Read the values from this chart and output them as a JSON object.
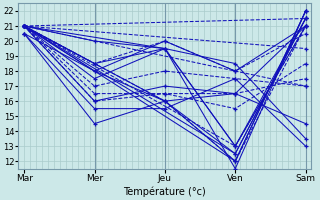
{
  "background_color": "#cce8e8",
  "grid_color": "#aacccc",
  "line_color": "#1111bb",
  "xlabel": "Température (°c)",
  "days": [
    "Mar",
    "Mer",
    "Jeu",
    "Ven",
    "Sam"
  ],
  "day_x": [
    0,
    96,
    192,
    288,
    384
  ],
  "xlim": [
    -8,
    392
  ],
  "ylim": [
    11.5,
    22.5
  ],
  "yticks": [
    12,
    13,
    14,
    15,
    16,
    17,
    18,
    19,
    20,
    21,
    22
  ],
  "series": [
    {
      "x": [
        0,
        96,
        192,
        288,
        384
      ],
      "y": [
        21.0,
        20.0,
        19.5,
        13.0,
        21.5
      ],
      "style": "-"
    },
    {
      "x": [
        0,
        96,
        192,
        288,
        384
      ],
      "y": [
        21.0,
        18.0,
        16.0,
        12.0,
        22.0
      ],
      "style": "-"
    },
    {
      "x": [
        0,
        96,
        192,
        288,
        384
      ],
      "y": [
        21.0,
        17.5,
        19.5,
        13.0,
        21.0
      ],
      "style": "-"
    },
    {
      "x": [
        0,
        96,
        192,
        288,
        384
      ],
      "y": [
        21.0,
        18.5,
        20.0,
        18.0,
        20.5
      ],
      "style": "--"
    },
    {
      "x": [
        0,
        96,
        192,
        288,
        384
      ],
      "y": [
        21.0,
        16.5,
        16.5,
        16.5,
        17.5
      ],
      "style": "--"
    },
    {
      "x": [
        0,
        96,
        192,
        288,
        384
      ],
      "y": [
        21.0,
        17.0,
        18.0,
        17.5,
        17.0
      ],
      "style": "--"
    },
    {
      "x": [
        0,
        96,
        192,
        288,
        384
      ],
      "y": [
        20.5,
        14.5,
        16.0,
        16.5,
        14.5
      ],
      "style": "-"
    },
    {
      "x": [
        0,
        96,
        192,
        288,
        384
      ],
      "y": [
        20.5,
        15.5,
        15.5,
        17.5,
        13.0
      ],
      "style": "-"
    },
    {
      "x": [
        0,
        96,
        192,
        288,
        384
      ],
      "y": [
        21.0,
        18.5,
        19.5,
        18.5,
        13.5
      ],
      "style": "-"
    },
    {
      "x": [
        0,
        96,
        192,
        288,
        384
      ],
      "y": [
        21.0,
        16.0,
        16.5,
        15.5,
        18.5
      ],
      "style": "--"
    },
    {
      "x": [
        0,
        96,
        192,
        288,
        384
      ],
      "y": [
        20.5,
        18.0,
        20.0,
        18.0,
        21.0
      ],
      "style": "-"
    },
    {
      "x": [
        0,
        96,
        192,
        288,
        384
      ],
      "y": [
        21.0,
        16.0,
        17.0,
        16.5,
        21.0
      ],
      "style": "-"
    },
    {
      "x": [
        0,
        192,
        288,
        384
      ],
      "y": [
        21.0,
        19.5,
        11.5,
        22.0
      ],
      "style": "-"
    },
    {
      "x": [
        0,
        192,
        288,
        384
      ],
      "y": [
        21.0,
        16.0,
        12.5,
        21.5
      ],
      "style": "-"
    },
    {
      "x": [
        0,
        192,
        288,
        384
      ],
      "y": [
        21.0,
        16.0,
        12.0,
        21.0
      ],
      "style": "--"
    },
    {
      "x": [
        0,
        288,
        384
      ],
      "y": [
        21.0,
        12.5,
        21.5
      ],
      "style": "-"
    },
    {
      "x": [
        0,
        288,
        384
      ],
      "y": [
        21.0,
        13.0,
        21.0
      ],
      "style": "--"
    },
    {
      "x": [
        0,
        288,
        384
      ],
      "y": [
        21.0,
        12.0,
        22.0
      ],
      "style": "-"
    },
    {
      "x": [
        0,
        384
      ],
      "y": [
        21.0,
        21.5
      ],
      "style": "--"
    },
    {
      "x": [
        0,
        384
      ],
      "y": [
        21.0,
        17.0
      ],
      "style": "--"
    },
    {
      "x": [
        0,
        384
      ],
      "y": [
        21.0,
        19.5
      ],
      "style": "--"
    }
  ],
  "markers": [
    {
      "x": [
        0,
        96,
        192,
        288,
        384
      ],
      "y": [
        21.0,
        20.0,
        19.5,
        13.0,
        21.5
      ]
    },
    {
      "x": [
        0,
        96,
        192,
        288,
        384
      ],
      "y": [
        21.0,
        18.0,
        16.0,
        12.0,
        22.0
      ]
    },
    {
      "x": [
        0,
        96,
        192,
        288,
        384
      ],
      "y": [
        21.0,
        17.5,
        19.5,
        13.0,
        21.0
      ]
    },
    {
      "x": [
        0,
        96,
        192,
        288,
        384
      ],
      "y": [
        21.0,
        18.5,
        20.0,
        18.0,
        20.5
      ]
    },
    {
      "x": [
        0,
        96,
        192,
        288,
        384
      ],
      "y": [
        21.0,
        16.5,
        16.5,
        16.5,
        17.5
      ]
    },
    {
      "x": [
        0,
        96,
        192,
        288,
        384
      ],
      "y": [
        21.0,
        17.0,
        18.0,
        17.5,
        17.0
      ]
    },
    {
      "x": [
        0,
        96,
        192,
        288,
        384
      ],
      "y": [
        20.5,
        14.5,
        16.0,
        16.5,
        14.5
      ]
    },
    {
      "x": [
        0,
        96,
        192,
        288,
        384
      ],
      "y": [
        20.5,
        15.5,
        15.5,
        17.5,
        13.0
      ]
    },
    {
      "x": [
        0,
        96,
        192,
        288,
        384
      ],
      "y": [
        21.0,
        18.5,
        19.5,
        18.5,
        13.5
      ]
    },
    {
      "x": [
        0,
        96,
        192,
        288,
        384
      ],
      "y": [
        21.0,
        16.0,
        16.5,
        15.5,
        18.5
      ]
    },
    {
      "x": [
        0,
        96,
        192,
        288,
        384
      ],
      "y": [
        20.5,
        18.0,
        20.0,
        18.0,
        21.0
      ]
    },
    {
      "x": [
        0,
        96,
        192,
        288,
        384
      ],
      "y": [
        21.0,
        16.0,
        17.0,
        16.5,
        21.0
      ]
    },
    {
      "x": [
        0,
        192,
        288,
        384
      ],
      "y": [
        21.0,
        19.5,
        11.5,
        22.0
      ]
    },
    {
      "x": [
        0,
        192,
        288,
        384
      ],
      "y": [
        21.0,
        16.0,
        12.5,
        21.5
      ]
    },
    {
      "x": [
        0,
        192,
        288,
        384
      ],
      "y": [
        21.0,
        16.0,
        12.0,
        21.0
      ]
    },
    {
      "x": [
        0,
        288,
        384
      ],
      "y": [
        21.0,
        12.5,
        21.5
      ]
    },
    {
      "x": [
        0,
        288,
        384
      ],
      "y": [
        21.0,
        13.0,
        21.0
      ]
    },
    {
      "x": [
        0,
        288,
        384
      ],
      "y": [
        21.0,
        12.0,
        22.0
      ]
    },
    {
      "x": [
        0,
        384
      ],
      "y": [
        21.0,
        21.5
      ]
    },
    {
      "x": [
        0,
        384
      ],
      "y": [
        21.0,
        17.0
      ]
    },
    {
      "x": [
        0,
        384
      ],
      "y": [
        21.0,
        19.5
      ]
    }
  ]
}
